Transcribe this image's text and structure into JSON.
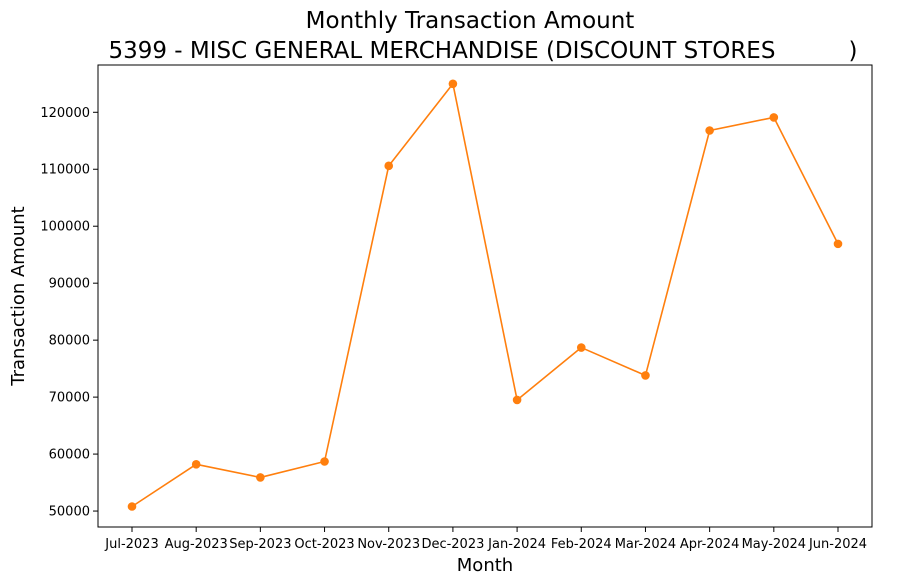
{
  "chart_data": {
    "type": "line",
    "title": "Monthly Transaction Amount",
    "subtitle": "5399 - MISC GENERAL MERCHANDISE (DISCOUNT STORES          )",
    "xlabel": "Month",
    "ylabel": "Transaction Amount",
    "categories": [
      "Jul-2023",
      "Aug-2023",
      "Sep-2023",
      "Oct-2023",
      "Nov-2023",
      "Dec-2023",
      "Jan-2024",
      "Feb-2024",
      "Mar-2024",
      "Apr-2024",
      "May-2024",
      "Jun-2024"
    ],
    "series": [
      {
        "name": "Transaction Amount",
        "color": "#ff7f0e",
        "values": [
          50800,
          58200,
          55900,
          58700,
          110600,
          125000,
          69500,
          78700,
          73800,
          116800,
          119100,
          96900
        ]
      }
    ],
    "yticks": [
      50000,
      60000,
      70000,
      80000,
      90000,
      100000,
      110000,
      120000
    ],
    "ylim": [
      47200,
      128300
    ],
    "grid": false,
    "legend": "none"
  }
}
